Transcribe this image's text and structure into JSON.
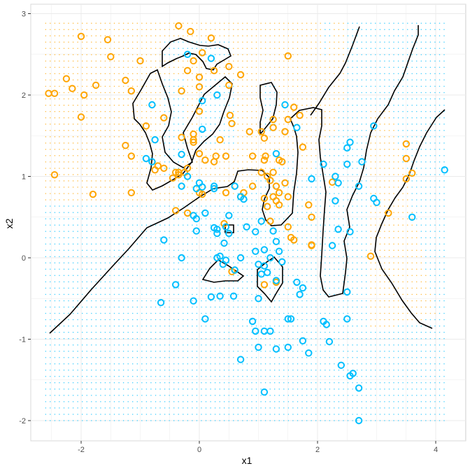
{
  "chart_data": {
    "type": "scatter",
    "title": "",
    "xlabel": "x1",
    "ylabel": "x2",
    "xlim": [
      -2.85,
      4.5
    ],
    "ylim": [
      -2.3,
      3.05
    ],
    "x_ticks": [
      -2,
      0,
      2,
      4
    ],
    "y_ticks": [
      -2,
      -1,
      0,
      1,
      2,
      3
    ],
    "grid": true,
    "legend": "none",
    "colors": {
      "class0": "#FFA500",
      "class1": "#00BFFF",
      "boundary": "#000000",
      "panel": "#ffffff",
      "grid": "#ebebeb"
    },
    "background_grid": {
      "x_range": [
        -2.6,
        4.2
      ],
      "y_range": [
        -2.0,
        2.9
      ],
      "description": "dense dotted grid colored by predicted class"
    },
    "series": [
      {
        "class": 0,
        "marker": "open-circle",
        "color": "#FFA500",
        "points": [
          [
            -2.0,
            2.72
          ],
          [
            -1.55,
            2.68
          ],
          [
            -1.5,
            2.47
          ],
          [
            -0.35,
            2.85
          ],
          [
            -0.15,
            2.78
          ],
          [
            0.2,
            2.7
          ],
          [
            0.05,
            2.52
          ],
          [
            -0.1,
            2.42
          ],
          [
            -0.2,
            2.3
          ],
          [
            0.0,
            2.22
          ],
          [
            0.25,
            2.3
          ],
          [
            0.5,
            2.35
          ],
          [
            0.7,
            2.25
          ],
          [
            1.5,
            2.48
          ],
          [
            -2.25,
            2.2
          ],
          [
            -2.45,
            2.02
          ],
          [
            -2.55,
            2.02
          ],
          [
            -2.15,
            2.08
          ],
          [
            -1.95,
            2.0
          ],
          [
            -1.75,
            2.12
          ],
          [
            -1.25,
            2.18
          ],
          [
            -1.15,
            2.05
          ],
          [
            -1.0,
            2.42
          ],
          [
            -0.3,
            2.05
          ],
          [
            0.0,
            2.1
          ],
          [
            0.5,
            2.12
          ],
          [
            0.0,
            1.8
          ],
          [
            -2.0,
            1.73
          ],
          [
            -0.6,
            1.72
          ],
          [
            -0.9,
            1.62
          ],
          [
            -0.3,
            1.48
          ],
          [
            -0.1,
            1.52
          ],
          [
            -0.1,
            1.45
          ],
          [
            -0.1,
            1.42
          ],
          [
            0.35,
            1.45
          ],
          [
            0.52,
            1.75
          ],
          [
            0.55,
            1.65
          ],
          [
            0.85,
            1.55
          ],
          [
            1.05,
            1.55
          ],
          [
            1.1,
            1.47
          ],
          [
            1.25,
            1.6
          ],
          [
            1.25,
            1.7
          ],
          [
            1.45,
            1.55
          ],
          [
            1.5,
            1.7
          ],
          [
            1.6,
            1.85
          ],
          [
            1.7,
            1.75
          ],
          [
            1.75,
            1.36
          ],
          [
            -1.25,
            1.38
          ],
          [
            -1.15,
            1.25
          ],
          [
            -0.7,
            1.13
          ],
          [
            -0.75,
            1.08
          ],
          [
            -0.6,
            1.1
          ],
          [
            -0.4,
            1.05
          ],
          [
            -0.35,
            1.05
          ],
          [
            -0.25,
            1.05
          ],
          [
            -0.2,
            1.1
          ],
          [
            -0.35,
            1.02
          ],
          [
            -0.45,
            0.98
          ],
          [
            0.0,
            1.28
          ],
          [
            0.1,
            1.2
          ],
          [
            0.25,
            1.18
          ],
          [
            0.28,
            1.25
          ],
          [
            0.45,
            1.25
          ],
          [
            0.9,
            1.25
          ],
          [
            1.1,
            1.2
          ],
          [
            1.12,
            1.25
          ],
          [
            1.35,
            1.2
          ],
          [
            1.4,
            1.18
          ],
          [
            -2.45,
            1.02
          ],
          [
            -1.8,
            0.78
          ],
          [
            -1.15,
            0.8
          ],
          [
            0.0,
            0.8
          ],
          [
            0.05,
            0.78
          ],
          [
            0.45,
            0.8
          ],
          [
            0.7,
            0.75
          ],
          [
            0.75,
            0.8
          ],
          [
            0.9,
            0.88
          ],
          [
            1.05,
            1.05
          ],
          [
            1.15,
            1.0
          ],
          [
            1.2,
            0.95
          ],
          [
            1.25,
            1.05
          ],
          [
            1.3,
            0.88
          ],
          [
            1.35,
            0.8
          ],
          [
            1.25,
            0.75
          ],
          [
            1.3,
            0.7
          ],
          [
            1.35,
            0.65
          ],
          [
            1.45,
            0.92
          ],
          [
            1.1,
            0.73
          ],
          [
            1.15,
            0.63
          ],
          [
            1.5,
            0.75
          ],
          [
            -0.4,
            0.58
          ],
          [
            -0.2,
            0.55
          ],
          [
            1.2,
            0.45
          ],
          [
            1.5,
            0.38
          ],
          [
            1.55,
            0.25
          ],
          [
            1.6,
            0.22
          ],
          [
            1.85,
            0.65
          ],
          [
            1.9,
            0.5
          ],
          [
            1.9,
            0.16
          ],
          [
            1.9,
            0.15
          ],
          [
            2.25,
            0.93
          ],
          [
            3.2,
            0.55
          ],
          [
            3.5,
            1.4
          ],
          [
            3.5,
            1.22
          ],
          [
            3.6,
            1.04
          ],
          [
            3.5,
            0.97
          ],
          [
            2.9,
            0.02
          ],
          [
            0.42,
            0.42
          ],
          [
            0.55,
            -0.17
          ],
          [
            1.1,
            -0.33
          ],
          [
            1.3,
            -0.3
          ]
        ]
      },
      {
        "class": 1,
        "marker": "open-circle",
        "color": "#00BFFF",
        "points": [
          [
            -0.2,
            2.5
          ],
          [
            0.2,
            2.45
          ],
          [
            0.3,
            2.0
          ],
          [
            0.05,
            1.93
          ],
          [
            -0.8,
            1.88
          ],
          [
            1.45,
            1.88
          ],
          [
            0.05,
            1.58
          ],
          [
            1.65,
            1.6
          ],
          [
            2.95,
            1.62
          ],
          [
            -0.75,
            1.45
          ],
          [
            2.55,
            1.42
          ],
          [
            2.5,
            1.35
          ],
          [
            -0.3,
            1.27
          ],
          [
            1.3,
            1.28
          ],
          [
            -0.9,
            1.22
          ],
          [
            -0.8,
            1.18
          ],
          [
            2.75,
            1.18
          ],
          [
            2.1,
            1.15
          ],
          [
            2.5,
            1.15
          ],
          [
            4.15,
            1.08
          ],
          [
            -0.2,
            1.0
          ],
          [
            2.3,
            1.0
          ],
          [
            1.9,
            0.97
          ],
          [
            0.0,
            0.92
          ],
          [
            -0.3,
            0.88
          ],
          [
            0.05,
            0.87
          ],
          [
            0.25,
            0.88
          ],
          [
            0.6,
            0.88
          ],
          [
            2.35,
            0.92
          ],
          [
            2.7,
            0.88
          ],
          [
            -0.05,
            0.85
          ],
          [
            0.25,
            0.85
          ],
          [
            0.7,
            0.75
          ],
          [
            0.75,
            0.72
          ],
          [
            2.3,
            0.7
          ],
          [
            2.95,
            0.73
          ],
          [
            3.0,
            0.68
          ],
          [
            3.6,
            0.5
          ],
          [
            -0.1,
            0.52
          ],
          [
            0.1,
            0.55
          ],
          [
            -0.05,
            0.48
          ],
          [
            0.5,
            0.52
          ],
          [
            0.25,
            0.37
          ],
          [
            0.3,
            0.35
          ],
          [
            0.45,
            0.38
          ],
          [
            0.3,
            0.3
          ],
          [
            0.5,
            0.3
          ],
          [
            0.8,
            0.38
          ],
          [
            0.95,
            0.32
          ],
          [
            1.05,
            0.45
          ],
          [
            1.25,
            0.33
          ],
          [
            1.3,
            0.2
          ],
          [
            -0.05,
            0.33
          ],
          [
            2.35,
            0.35
          ],
          [
            2.55,
            0.32
          ],
          [
            2.25,
            0.15
          ],
          [
            -0.6,
            0.22
          ],
          [
            0.42,
            0.18
          ],
          [
            0.95,
            0.08
          ],
          [
            1.1,
            0.1
          ],
          [
            1.35,
            0.08
          ],
          [
            1.2,
            0.0
          ],
          [
            1.0,
            -0.08
          ],
          [
            1.1,
            -0.1
          ],
          [
            1.15,
            -0.18
          ],
          [
            1.4,
            -0.05
          ],
          [
            0.3,
            0.0
          ],
          [
            0.35,
            0.02
          ],
          [
            0.45,
            -0.03
          ],
          [
            -0.3,
            0.0
          ],
          [
            0.7,
            0.0
          ],
          [
            0.4,
            -0.08
          ],
          [
            0.6,
            -0.15
          ],
          [
            1.05,
            -0.2
          ],
          [
            -0.4,
            -0.33
          ],
          [
            1.3,
            -0.28
          ],
          [
            1.65,
            -0.3
          ],
          [
            1.75,
            -0.37
          ],
          [
            0.35,
            -0.47
          ],
          [
            0.58,
            -0.47
          ],
          [
            1.0,
            -0.5
          ],
          [
            1.7,
            -0.45
          ],
          [
            0.2,
            -0.48
          ],
          [
            -0.65,
            -0.55
          ],
          [
            -0.1,
            -0.53
          ],
          [
            2.5,
            -0.42
          ],
          [
            0.1,
            -0.75
          ],
          [
            1.5,
            -0.75
          ],
          [
            1.55,
            -0.75
          ],
          [
            2.1,
            -0.78
          ],
          [
            2.15,
            -0.82
          ],
          [
            2.5,
            -0.75
          ],
          [
            0.9,
            -0.78
          ],
          [
            0.95,
            -0.9
          ],
          [
            1.1,
            -0.9
          ],
          [
            1.2,
            -0.9
          ],
          [
            1.75,
            -1.02
          ],
          [
            2.2,
            -1.03
          ],
          [
            1.0,
            -1.1
          ],
          [
            1.3,
            -1.12
          ],
          [
            1.5,
            -1.1
          ],
          [
            1.85,
            -1.17
          ],
          [
            0.7,
            -1.25
          ],
          [
            2.4,
            -1.32
          ],
          [
            2.55,
            -1.45
          ],
          [
            2.6,
            -1.42
          ],
          [
            2.7,
            -1.6
          ],
          [
            1.1,
            -1.65
          ],
          [
            2.7,
            -2.0
          ]
        ]
      }
    ]
  }
}
